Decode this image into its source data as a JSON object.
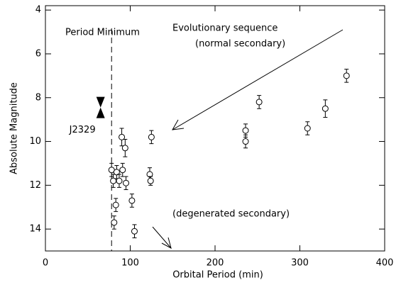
{
  "chart_data": {
    "type": "scatter",
    "x_label": "Orbital Period (min)",
    "y_label": "Absolute Magnitude",
    "x": [
      78,
      80,
      81,
      83,
      84,
      87,
      90,
      91,
      94,
      95,
      102,
      105,
      123,
      124,
      125,
      236,
      236,
      252,
      309,
      330,
      355
    ],
    "y": [
      11.3,
      11.8,
      13.7,
      12.9,
      11.4,
      11.8,
      9.8,
      11.3,
      10.3,
      11.9,
      12.7,
      14.1,
      11.5,
      11.8,
      9.8,
      9.5,
      10.0,
      8.2,
      9.4,
      8.5,
      7.0
    ],
    "yerr": [
      0.3,
      0.3,
      0.3,
      0.3,
      0.3,
      0.3,
      0.4,
      0.3,
      0.4,
      0.3,
      0.3,
      0.3,
      0.3,
      0.2,
      0.3,
      0.3,
      0.3,
      0.3,
      0.3,
      0.4,
      0.3
    ],
    "color": "#000000",
    "xlim": [
      0,
      400
    ],
    "xticks": [
      0,
      100,
      200,
      300,
      400
    ],
    "ylim": [
      15,
      3.8
    ],
    "yticks": [
      4,
      6,
      8,
      10,
      12,
      14
    ],
    "period_minimum": {
      "x": 78,
      "label": "Period Minimum"
    },
    "highlight": {
      "label": "J2329",
      "x": 65,
      "y": 8.45
    },
    "annotations": [
      "Evolutionary sequence",
      "(normal secondary)",
      "(degenerated secondary)"
    ]
  }
}
